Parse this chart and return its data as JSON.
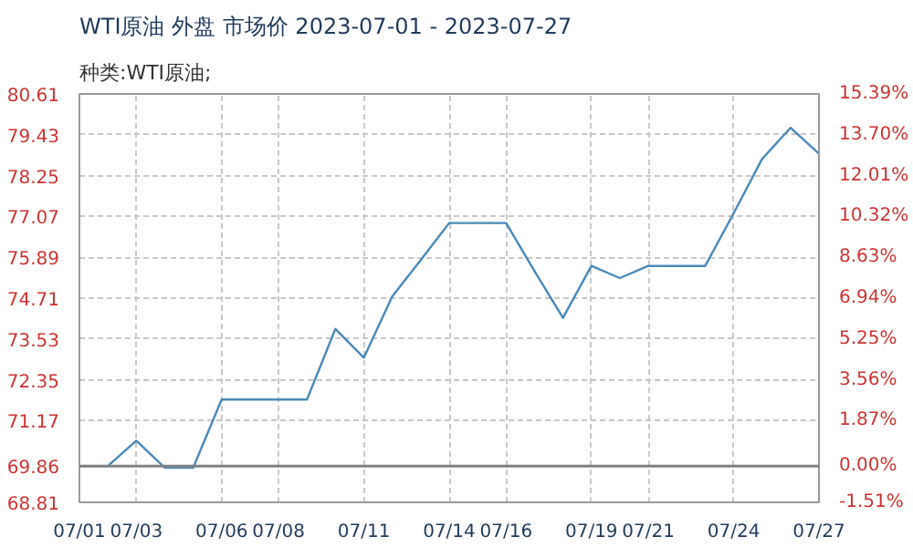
{
  "chart_data": {
    "type": "line",
    "title": "WTI原油 外盘 市场价 2023-07-01 - 2023-07-27",
    "subtitle": "种类:WTI原油;",
    "categories": [
      "07/01",
      null,
      "07/03",
      null,
      null,
      "07/06",
      null,
      "07/08",
      null,
      null,
      "07/11",
      null,
      null,
      "07/14",
      null,
      "07/16",
      null,
      null,
      "07/19",
      null,
      "07/21",
      null,
      null,
      "07/24",
      null,
      null,
      "07/27"
    ],
    "series": [
      {
        "color": "#4a8ab8",
        "values": [
          69.86,
          69.86,
          70.59,
          69.81,
          69.81,
          71.78,
          71.78,
          71.78,
          71.78,
          73.82,
          72.99,
          74.76,
          75.81,
          76.88,
          76.88,
          76.88,
          75.49,
          74.14,
          75.64,
          75.29,
          75.64,
          75.64,
          75.64,
          77.16,
          78.73,
          79.63,
          78.88
        ]
      }
    ],
    "ylim": [
      68.81,
      80.61
    ],
    "yticks": [
      68.81,
      69.86,
      71.17,
      72.35,
      73.53,
      74.71,
      75.89,
      77.07,
      78.25,
      79.43,
      80.61
    ],
    "y2lim": [
      -1.51,
      15.39
    ],
    "y2ticks": [
      {
        "value": -1.51,
        "label": "-1.51%"
      },
      {
        "value": 0,
        "label": "0.00%"
      },
      {
        "value": 1.87,
        "label": "1.87%"
      },
      {
        "value": 3.56,
        "label": "3.56%"
      },
      {
        "value": 5.25,
        "label": "5.25%"
      },
      {
        "value": 6.94,
        "label": "6.94%"
      },
      {
        "value": 8.63,
        "label": "8.63%"
      },
      {
        "value": 10.32,
        "label": "10.32%"
      },
      {
        "value": 12.01,
        "label": "12.01%"
      },
      {
        "value": 13.7,
        "label": "13.70%"
      },
      {
        "value": 15.39,
        "label": "15.39%"
      }
    ],
    "ref_lines": [
      {
        "axis": "y",
        "value": 69.86,
        "color": "#808080",
        "line_style": "solid"
      }
    ],
    "grid": true,
    "marker": "none",
    "line_style": "solid"
  }
}
